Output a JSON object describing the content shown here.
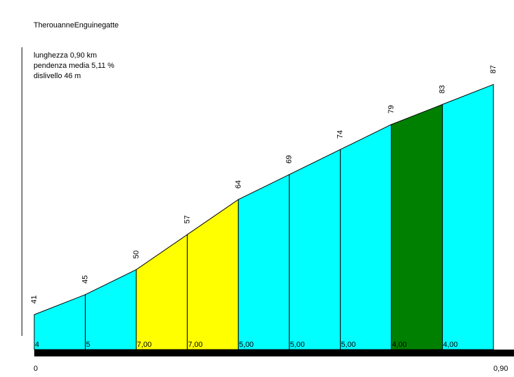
{
  "title": "TherouanneEnguinegatte",
  "stats": {
    "length": "lunghezza 0,90 km",
    "avg_gradient": "pendenza media 5,11 %",
    "elevation_gain": "dislivello 46 m"
  },
  "chart_data": {
    "type": "area",
    "title": "TherouanneEnguinegatte",
    "x_start_label": "0",
    "x_end_label": "0,90",
    "x_km": [
      0,
      0.1,
      0.2,
      0.3,
      0.4,
      0.5,
      0.6,
      0.7,
      0.8,
      0.9
    ],
    "elevations": [
      41,
      45,
      50,
      57,
      64,
      69,
      74,
      79,
      83,
      87
    ],
    "segments": [
      {
        "gradient": "4",
        "color": "#00ffff"
      },
      {
        "gradient": "5",
        "color": "#00ffff"
      },
      {
        "gradient": "7,00",
        "color": "#ffff00"
      },
      {
        "gradient": "7,00",
        "color": "#ffff00"
      },
      {
        "gradient": "5,00",
        "color": "#00ffff"
      },
      {
        "gradient": "5,00",
        "color": "#00ffff"
      },
      {
        "gradient": "5,00",
        "color": "#00ffff"
      },
      {
        "gradient": "4,00",
        "color": "#008000"
      },
      {
        "gradient": "4,00",
        "color": "#00ffff"
      }
    ]
  }
}
